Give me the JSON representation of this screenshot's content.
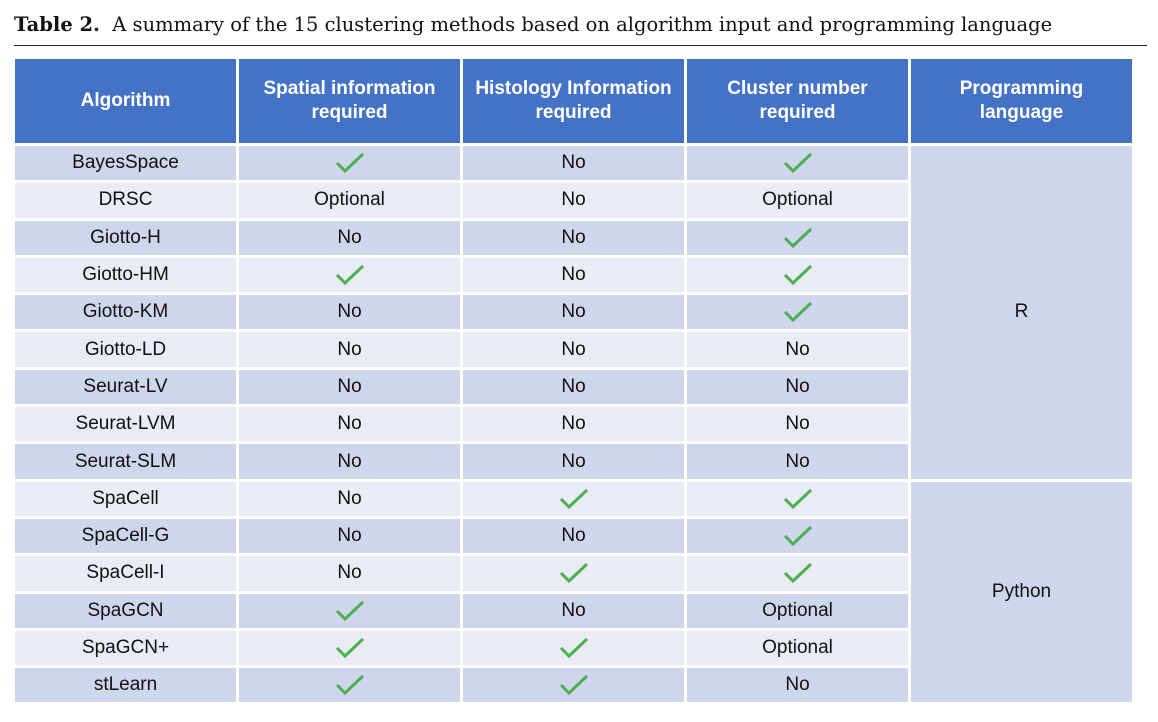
{
  "caption": {
    "label": "Table 2.",
    "text": "A summary of the 15 clustering methods based on algorithm input and programming language"
  },
  "table": {
    "headers": [
      "Algorithm",
      "Spatial information required",
      "Histology Information required",
      "Cluster number required",
      "Programming language"
    ],
    "rows": [
      [
        "BayesSpace",
        "check",
        "No",
        "check"
      ],
      [
        "DRSC",
        "Optional",
        "No",
        "Optional"
      ],
      [
        "Giotto-H",
        "No",
        "No",
        "check"
      ],
      [
        "Giotto-HM",
        "check",
        "No",
        "check"
      ],
      [
        "Giotto-KM",
        "No",
        "No",
        "check"
      ],
      [
        "Giotto-LD",
        "No",
        "No",
        "No"
      ],
      [
        "Seurat-LV",
        "No",
        "No",
        "No"
      ],
      [
        "Seurat-LVM",
        "No",
        "No",
        "No"
      ],
      [
        "Seurat-SLM",
        "No",
        "No",
        "No"
      ],
      [
        "SpaCell",
        "No",
        "check",
        "check"
      ],
      [
        "SpaCell-G",
        "No",
        "No",
        "check"
      ],
      [
        "SpaCell-I",
        "No",
        "check",
        "check"
      ],
      [
        "SpaGCN",
        "check",
        "No",
        "Optional"
      ],
      [
        "SpaGCN+",
        "check",
        "check",
        "Optional"
      ],
      [
        "stLearn",
        "check",
        "check",
        "No"
      ]
    ],
    "languages": [
      {
        "name": "R",
        "rowspan": 9
      },
      {
        "name": "Python",
        "rowspan": 6
      }
    ]
  },
  "colors": {
    "header_bg": "#4472c4",
    "row_dark": "#cfd5ea",
    "row_light": "#e9ebf5",
    "check_green": "#4caf50"
  },
  "icons": {
    "yes": "check-icon"
  }
}
